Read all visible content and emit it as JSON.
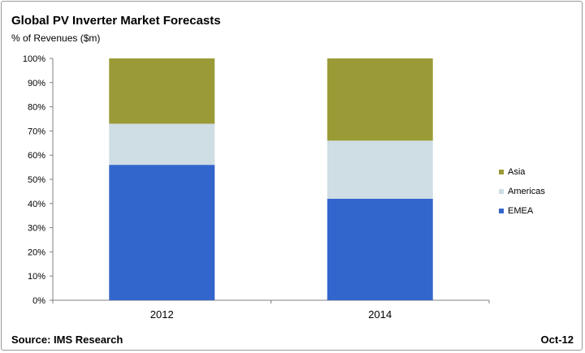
{
  "header": {
    "title": "Global PV Inverter Market Forecasts",
    "subtitle": "% of Revenues ($m)"
  },
  "footer": {
    "source": "Source: IMS Research",
    "date": "Oct-12"
  },
  "chart_data": {
    "type": "bar",
    "stacked": true,
    "categories": [
      "2012",
      "2014"
    ],
    "series": [
      {
        "name": "EMEA",
        "values": [
          56,
          42
        ],
        "color": "#3366cc"
      },
      {
        "name": "Americas",
        "values": [
          17,
          24
        ],
        "color": "#cfdde4"
      },
      {
        "name": "Asia",
        "values": [
          27,
          34
        ],
        "color": "#9a9a37"
      }
    ],
    "title": "Global PV Inverter Market Forecasts",
    "subtitle": "% of Revenues ($m)",
    "xlabel": "",
    "ylabel": "",
    "ylim": [
      0,
      100
    ],
    "y_ticks": [
      "0%",
      "10%",
      "20%",
      "30%",
      "40%",
      "50%",
      "60%",
      "70%",
      "80%",
      "90%",
      "100%"
    ],
    "legend_order": [
      "Asia",
      "Americas",
      "EMEA"
    ],
    "legend_position": "right",
    "grid": false
  }
}
